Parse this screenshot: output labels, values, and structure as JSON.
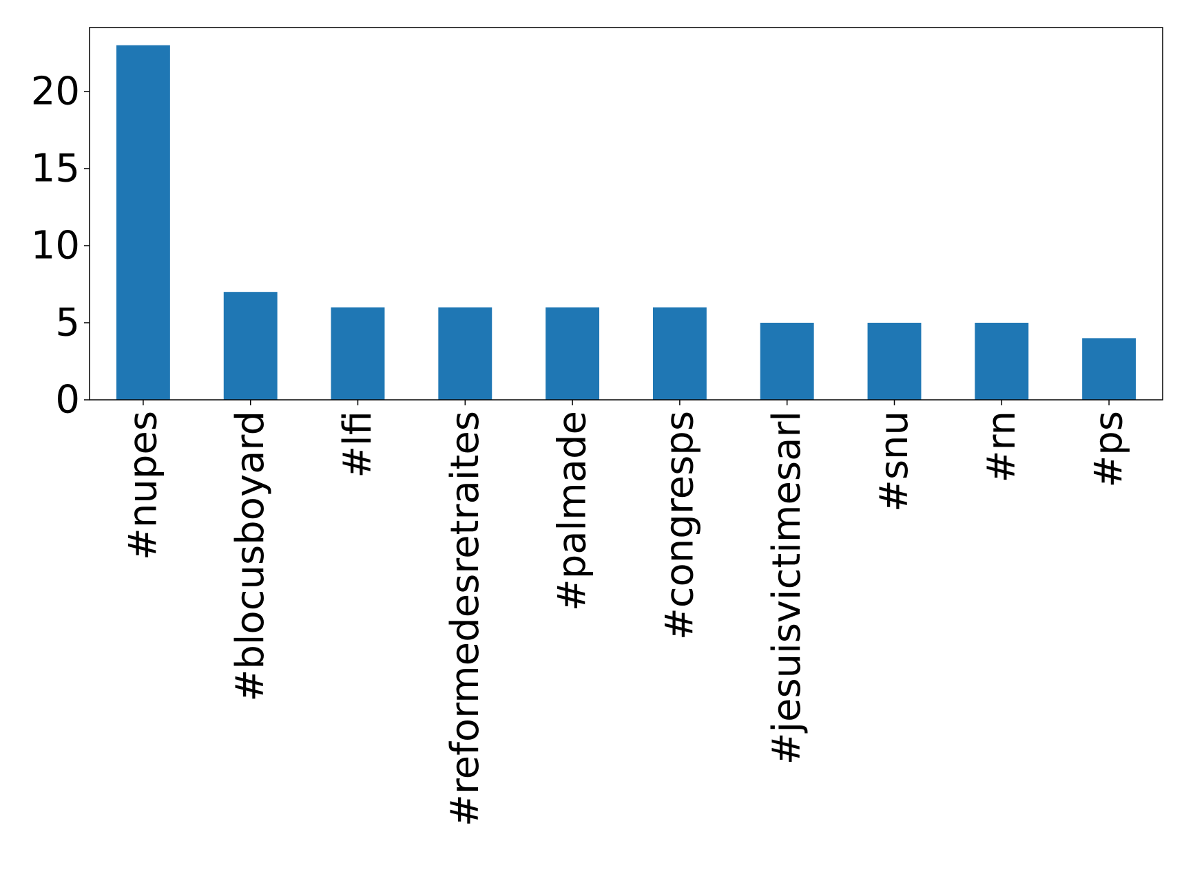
{
  "chart_data": {
    "type": "bar",
    "categories": [
      "#nupes",
      "#blocusboyard",
      "#lfi",
      "#reformedesretraites",
      "#palmade",
      "#congresps",
      "#jesuisvictimesarl",
      "#snu",
      "#rn",
      "#ps"
    ],
    "values": [
      23,
      7,
      6,
      6,
      6,
      6,
      5,
      5,
      5,
      4
    ],
    "title": "",
    "xlabel": "",
    "ylabel": "",
    "ylim": [
      0,
      24.15
    ],
    "yticks": [
      0,
      5,
      10,
      15,
      20
    ],
    "grid": false,
    "bar_color": "#1f77b4",
    "x_tick_rotation": 90
  }
}
